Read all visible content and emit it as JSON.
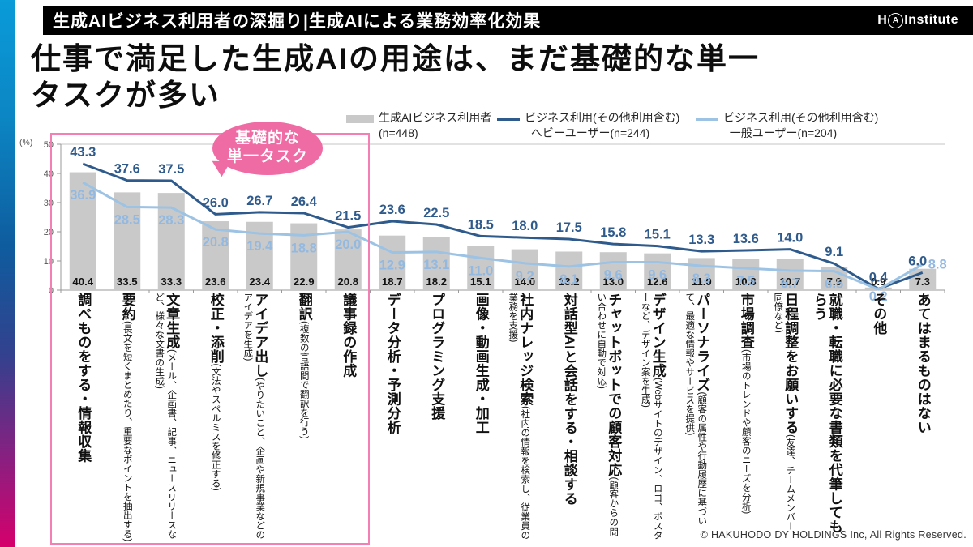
{
  "header": {
    "title": "生成AIビジネス利用者の深掘り|生成AIによる業務効率化効果",
    "logo": {
      "prefix": "H",
      "circled": "A",
      "suffix": "Institute"
    }
  },
  "page_title": {
    "line1": "仕事で満足した生成AIの用途は、まだ基礎的な単一",
    "line2": "タスクが多い"
  },
  "legend": [
    {
      "swatch": "bar",
      "color": "#C9C9C9",
      "line1": "生成AIビジネス利用者",
      "line2": "(n=448)"
    },
    {
      "swatch": "line",
      "color": "#2F5B8C",
      "line1": "ビジネス利用(その他利用含む)",
      "line2": "_ヘビーユーザー(n=244)"
    },
    {
      "swatch": "line",
      "color": "#9CC2E4",
      "line1": "ビジネス利用(その他利用含む)",
      "line2": "_一般ユーザー(n=204)"
    }
  ],
  "callout": {
    "line1": "基礎的な",
    "line2": "単一タスク"
  },
  "footer": "© HAKUHODO DY HOLDINGS Inc, All Rights Reserved.",
  "chart_data": {
    "type": "bar+line combo",
    "ylabel": "(%)",
    "ylim": [
      0,
      50
    ],
    "yticks": [
      0,
      10,
      20,
      30,
      40,
      50
    ],
    "highlight": {
      "label": "基礎的な単一タスク",
      "covers_first_n": 7
    },
    "categories": [
      {
        "main": "調べものをする・情報収集",
        "sub": ""
      },
      {
        "main": "要約",
        "sub": "(長文を短くまとめたり、重要なポイントを抽出する)"
      },
      {
        "main": "文章生成",
        "sub": "(メール、企画書、記事、ニュースリリースなど、様々な文書の生成)"
      },
      {
        "main": "校正・添削",
        "sub": "(文法やスペルミスを修正する)"
      },
      {
        "main": "アイデア出し",
        "sub": "(やりたいこと、企画や新規事業などのアイデアを生成)"
      },
      {
        "main": "翻訳",
        "sub": "(複数の言語間で翻訳を行う)"
      },
      {
        "main": "議事録の作成",
        "sub": ""
      },
      {
        "main": "データ分析・予測分析",
        "sub": ""
      },
      {
        "main": "プログラミング支援",
        "sub": ""
      },
      {
        "main": "画像・動画生成・加工",
        "sub": ""
      },
      {
        "main": "社内ナレッジ検索",
        "sub": "(社内の情報を検索し、従業員の業務を支援)"
      },
      {
        "main": "対話型AIと会話をする・相談する",
        "sub": ""
      },
      {
        "main": "チャットボットでの顧客対応",
        "sub": "(顧客からの問い合わせに自動で対応)"
      },
      {
        "main": "デザイン生成",
        "sub": "(Webサイトのデザイン、ロゴ、ポスターなど、デザイン案を生成)"
      },
      {
        "main": "パーソナライズ",
        "sub": "(顧客の属性や行動履歴に基づいて、最適な情報やサービスを提供)"
      },
      {
        "main": "市場調査",
        "sub": "(市場のトレンドや顧客のニーズを分析)"
      },
      {
        "main": "日程調整をお願いする",
        "sub": "(友達、チームメンバー、同僚など)"
      },
      {
        "main": "就職・転職に必要な書類を代筆してもらう",
        "sub": ""
      },
      {
        "main": "その他",
        "sub": ""
      },
      {
        "main": "あてはまるものはない",
        "sub": ""
      }
    ],
    "series": [
      {
        "name": "生成AIビジネス利用者(n=448)",
        "type": "bar",
        "color": "#C9C9C9",
        "values": [
          40.4,
          33.5,
          33.3,
          23.6,
          23.4,
          22.9,
          20.8,
          18.7,
          18.2,
          15.1,
          14.0,
          13.2,
          13.0,
          12.6,
          11.0,
          10.8,
          10.7,
          7.9,
          0.9,
          7.3
        ]
      },
      {
        "name": "ビジネス利用(その他利用含む)_ヘビーユーザー(n=244)",
        "type": "line",
        "color": "#2F5B8C",
        "values": [
          43.3,
          37.6,
          37.5,
          26.0,
          26.7,
          26.4,
          21.5,
          23.6,
          22.5,
          18.5,
          18.0,
          17.5,
          15.8,
          15.1,
          13.3,
          13.6,
          14.0,
          9.1,
          0.4,
          6.0
        ]
      },
      {
        "name": "ビジネス利用(その他利用含む)_一般ユーザー(n=204)",
        "type": "line",
        "color": "#9CC2E4",
        "values": [
          36.9,
          28.5,
          28.3,
          20.8,
          19.4,
          18.8,
          20.0,
          12.9,
          13.1,
          11.0,
          9.2,
          8.1,
          9.6,
          9.6,
          8.3,
          7.5,
          6.7,
          6.5,
          0.2,
          8.8
        ]
      }
    ]
  }
}
